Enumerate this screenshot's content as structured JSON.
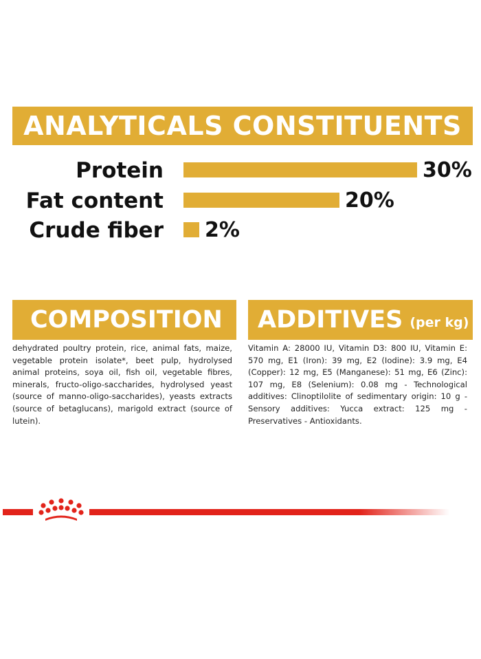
{
  "analytical_constituents": {
    "title": "ANALYTICALS CONSTITUENTS",
    "rows": [
      {
        "label": "Protein",
        "value": 30,
        "display": "30%"
      },
      {
        "label": "Fat content",
        "value": 20,
        "display": "20%"
      },
      {
        "label": "Crude fiber",
        "value": 2,
        "display": "2%"
      }
    ],
    "max_value": 30,
    "bar_color": "#e1ad35"
  },
  "composition": {
    "title": "COMPOSITION",
    "text": "dehydrated poultry protein, rice, animal fats, maize, vegetable protein isolate*, beet pulp, hydrolysed animal proteins, soya oil, fish oil, vegetable fibres, minerals, fructo-oligo-saccharides, hydrolysed yeast (source of manno-oligo-saccharides), yeasts extracts (source of betaglucans), marigold extract (source of lutein)."
  },
  "additives": {
    "title": "ADDITIVES",
    "subtitle": "(per kg)",
    "text": "Vitamin A: 28000 IU, Vitamin D3: 800 IU, Vitamin E: 570 mg, E1 (Iron): 39 mg, E2 (Iodine): 3.9 mg, E4 (Copper): 12 mg, E5 (Manganese): 51 mg, E6 (Zinc): 107 mg, E8 (Selenium): 0.08 mg - Technological additives: Clinoptilolite of sedimentary origin: 10 g - Sensory additives: Yucca extract: 125 mg - Preservatives - Antioxidants."
  },
  "brand": {
    "logo_icon": "crown-icon",
    "accent_color": "#e2231a"
  }
}
